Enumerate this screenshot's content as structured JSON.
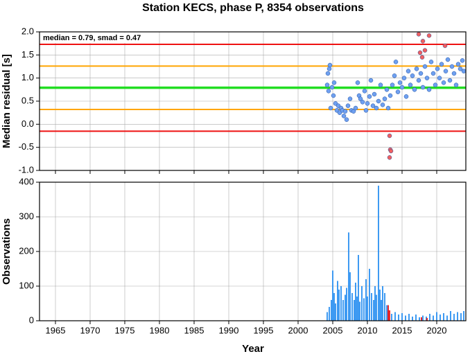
{
  "chart_data": [
    {
      "type": "scatter",
      "title": "Station KECS, phase P, 8354 observations",
      "ylabel": "Median residual [s]",
      "annotation": "median = 0.79, smad = 0.47",
      "xlim": [
        1962.7,
        2024.2
      ],
      "xticks": [
        1965,
        1970,
        1975,
        1980,
        1985,
        1990,
        1995,
        2000,
        2005,
        2010,
        2015,
        2020
      ],
      "ylim": [
        -1.0,
        2.0
      ],
      "yticks": [
        {
          "value": -1.0,
          "label": "-1.0"
        },
        {
          "value": -0.5,
          "label": "-0.5"
        },
        {
          "value": 0.0,
          "label": "0.0"
        },
        {
          "value": 0.5,
          "label": "0.5"
        },
        {
          "value": 1.0,
          "label": "1.0"
        },
        {
          "value": 1.5,
          "label": "1.5"
        },
        {
          "value": 2.0,
          "label": "2.0"
        }
      ],
      "grid": true,
      "hlines": [
        {
          "value": 1.73,
          "color": "#ee1111"
        },
        {
          "value": 1.26,
          "color": "#ffa500"
        },
        {
          "value": 0.79,
          "color": "#22dd22"
        },
        {
          "value": 0.32,
          "color": "#ffa500"
        },
        {
          "value": -0.15,
          "color": "#ee1111"
        }
      ],
      "series": [
        {
          "color": "#6fa0f0",
          "x": [
            2004.2,
            2004.3,
            2004.4,
            2004.5,
            2004.6,
            2004.7,
            2004.9,
            2005.1,
            2005.2,
            2005.4,
            2005.6,
            2005.8,
            2006.0,
            2006.2,
            2006.4,
            2006.6,
            2006.8,
            2007.0,
            2007.2,
            2007.5,
            2007.7,
            2008.0,
            2008.3,
            2008.6,
            2008.8,
            2009.0,
            2009.3,
            2009.6,
            2009.8,
            2010.0,
            2010.3,
            2010.5,
            2010.8,
            2011.0,
            2011.3,
            2011.6,
            2011.9,
            2012.2,
            2012.5,
            2012.8,
            2013.0,
            2013.3,
            2013.6,
            2013.9,
            2014.1,
            2014.4,
            2014.7,
            2015.0,
            2015.3,
            2015.6,
            2015.9,
            2016.2,
            2016.5,
            2016.8,
            2017.1,
            2017.4,
            2017.7,
            2018.0,
            2018.3,
            2018.6,
            2018.9,
            2019.2,
            2019.5,
            2019.8,
            2020.1,
            2020.4,
            2020.7,
            2021.0,
            2021.3,
            2021.6,
            2021.9,
            2022.2,
            2022.5,
            2022.8,
            2023.1,
            2023.4,
            2023.7,
            2023.9
          ],
          "values": [
            0.85,
            1.1,
            0.72,
            1.2,
            1.28,
            0.35,
            0.8,
            0.62,
            0.9,
            0.45,
            0.3,
            0.4,
            0.25,
            0.35,
            0.3,
            0.18,
            0.28,
            0.1,
            0.4,
            0.55,
            0.3,
            0.28,
            0.35,
            0.9,
            0.62,
            0.55,
            0.48,
            0.72,
            0.3,
            0.45,
            0.6,
            0.95,
            0.4,
            0.65,
            0.35,
            0.5,
            0.85,
            0.42,
            0.55,
            0.75,
            0.35,
            0.62,
            0.85,
            1.05,
            1.35,
            0.7,
            0.9,
            0.8,
            1.0,
            0.6,
            1.15,
            0.85,
            1.05,
            0.75,
            1.2,
            0.95,
            1.1,
            0.8,
            1.25,
            1.0,
            0.75,
            1.35,
            1.1,
            0.85,
            1.2,
            1.0,
            1.3,
            0.9,
            1.15,
            1.4,
            0.95,
            1.25,
            1.1,
            0.85,
            1.3,
            1.2,
            1.38,
            1.15
          ]
        },
        {
          "color": "#f06060",
          "x": [
            2013.2,
            2013.3,
            2013.4,
            2013.2,
            2017.4,
            2017.6,
            2018.0,
            2018.3,
            2018.9,
            2021.2,
            2017.9
          ],
          "values": [
            -0.25,
            -0.55,
            -0.58,
            -0.72,
            1.95,
            1.55,
            1.8,
            1.6,
            1.92,
            1.7,
            1.45
          ]
        }
      ]
    },
    {
      "type": "bar",
      "ylabel": "Observations",
      "xlabel": "Year",
      "xlim": [
        1962.7,
        2024.2
      ],
      "xticks": [
        1965,
        1970,
        1975,
        1980,
        1985,
        1990,
        1995,
        2000,
        2005,
        2010,
        2015,
        2020
      ],
      "ylim": [
        0,
        400
      ],
      "yticks": [
        0,
        100,
        200,
        300,
        400
      ],
      "grid": true,
      "series": [
        {
          "color": "#2a8ff0",
          "x": [
            2004.2,
            2004.5,
            2004.8,
            2005.0,
            2005.2,
            2005.4,
            2005.7,
            2005.9,
            2006.2,
            2006.5,
            2006.8,
            2007.0,
            2007.3,
            2007.5,
            2007.8,
            2008.1,
            2008.3,
            2008.5,
            2008.7,
            2008.9,
            2009.2,
            2009.5,
            2009.8,
            2010.0,
            2010.3,
            2010.6,
            2010.9,
            2011.1,
            2011.3,
            2011.6,
            2011.8,
            2012.0,
            2012.2,
            2012.5,
            2012.8,
            2013.0,
            2013.5,
            2014.0,
            2014.5,
            2015.0,
            2015.5,
            2016.0,
            2016.5,
            2017.0,
            2017.5,
            2018.0,
            2018.5,
            2019.0,
            2019.5,
            2020.0,
            2020.5,
            2021.0,
            2021.5,
            2022.0,
            2022.5,
            2023.0,
            2023.5,
            2023.9
          ],
          "values": [
            25,
            40,
            60,
            145,
            80,
            50,
            115,
            90,
            100,
            60,
            75,
            95,
            255,
            140,
            80,
            60,
            110,
            70,
            190,
            55,
            100,
            65,
            120,
            70,
            150,
            80,
            60,
            100,
            75,
            390,
            90,
            60,
            100,
            80,
            45,
            30,
            20,
            25,
            18,
            22,
            15,
            20,
            12,
            18,
            10,
            15,
            12,
            20,
            15,
            25,
            18,
            22,
            15,
            28,
            20,
            25,
            22,
            28
          ]
        },
        {
          "color": "#ee1111",
          "x": [
            2013.0,
            2013.2,
            2017.8,
            2018.6
          ],
          "values": [
            45,
            30,
            10,
            8
          ]
        }
      ]
    }
  ]
}
